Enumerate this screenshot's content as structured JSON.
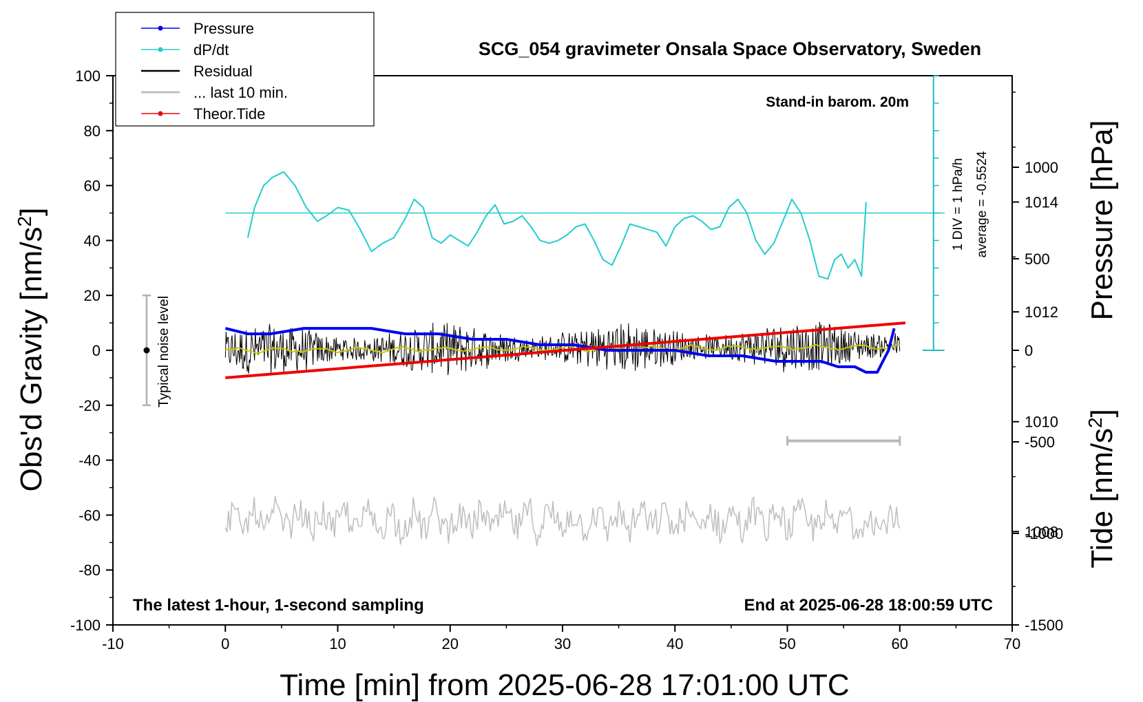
{
  "chart_data": {
    "type": "line",
    "title": "SCG_054 gravimeter Onsala Space Observatory, Sweden",
    "xlabel": "Time [min] from 2025-06-28 17:01:00 UTC",
    "ylabel_left_main": "Obs'd Gravity [nm/s",
    "ylabel_left_sup": "2",
    "ylabel_left_end": "]",
    "ylabel_right_top": "Pressure [hPa]",
    "ylabel_right_bottom_main": "Tide [nm/s",
    "ylabel_right_bottom_sup": "2",
    "ylabel_right_bottom_end": "]",
    "xlim": [
      -10,
      70
    ],
    "ylim": [
      -100,
      100
    ],
    "pressure_lim": [
      1006.3,
      1016.3
    ],
    "tide_lim": [
      -1500,
      1500
    ],
    "x_ticks": [
      "-10",
      "0",
      "10",
      "20",
      "30",
      "40",
      "50",
      "60",
      "70"
    ],
    "x_tick_values": [
      -10,
      0,
      10,
      20,
      30,
      40,
      50,
      60,
      70
    ],
    "y_ticks": [
      "100",
      "80",
      "60",
      "40",
      "20",
      "0",
      "-20",
      "-40",
      "-60",
      "-80",
      "-100"
    ],
    "y_tick_values": [
      100,
      80,
      60,
      40,
      20,
      0,
      -20,
      -40,
      -60,
      -80,
      -100
    ],
    "pressure_ticks": [
      "1014",
      "1012",
      "1010",
      "1008"
    ],
    "pressure_tick_values": [
      1014,
      1012,
      1010,
      1008
    ],
    "tide_ticks": [
      "1000",
      "500",
      "0",
      "-500",
      "-1000",
      "-1500"
    ],
    "tide_tick_values": [
      1000,
      500,
      0,
      -500,
      -1000,
      -1500
    ],
    "legend": {
      "position": "top-left",
      "entries": [
        {
          "label": "Pressure",
          "color": "#0000ee",
          "marker": true
        },
        {
          "label": "dP/dt",
          "color": "#22cccc",
          "marker": true
        },
        {
          "label": "Residual",
          "color": "#000000",
          "marker": false
        },
        {
          "label": "... last 10 min.",
          "color": "#c0c0c0",
          "marker": false
        },
        {
          "label": "Theor.Tide",
          "color": "#ee0000",
          "marker": true
        }
      ]
    },
    "annotations": {
      "stand_in": "Stand-in barom. 20m",
      "dpdt_div": "1 DIV = 1 hPa/h",
      "dpdt_avg": "average = -0.5524",
      "noise_label": "Typical noise level",
      "bottom_left": "The latest 1-hour, 1-second sampling",
      "bottom_right": "End at 2025-06-28 18:00:59 UTC"
    },
    "noise_bar": {
      "x": -7,
      "y_center": 0,
      "y_low": -20,
      "y_high": 20
    },
    "last10_bar": {
      "x_start": 50,
      "x_end": 60,
      "y": -33
    },
    "dpdt_zero_line_y": 50,
    "dpdt_scale": {
      "x": 63,
      "y_top": 100,
      "y_bottom": 0,
      "div_nm": 10
    },
    "colors": {
      "pressure": "#0000ee",
      "dpdt": "#22cccc",
      "residual": "#000000",
      "residual_smooth": "#c8c800",
      "last10": "#c0c0c0",
      "tide": "#ee0000",
      "scale": "#22bbbb"
    },
    "series": [
      {
        "name": "Pressure",
        "axis": "pressure",
        "x": [
          0,
          2,
          4,
          7,
          10,
          13,
          16,
          19,
          22,
          25,
          28,
          31,
          34,
          37,
          40,
          43,
          46,
          49,
          51,
          53,
          54.5,
          56,
          57,
          58,
          59,
          59.5
        ],
        "y": [
          1011.7,
          1011.6,
          1011.6,
          1011.7,
          1011.7,
          1011.7,
          1011.6,
          1011.6,
          1011.5,
          1011.5,
          1011.4,
          1011.4,
          1011.3,
          1011.3,
          1011.3,
          1011.2,
          1011.2,
          1011.1,
          1011.1,
          1011.1,
          1011.0,
          1011.0,
          1010.9,
          1010.9,
          1011.3,
          1011.7
        ]
      },
      {
        "name": "dP/dt",
        "axis": "gravity_units",
        "x": [
          2,
          2.6,
          3.4,
          4.2,
          5.2,
          6.2,
          7.2,
          8.2,
          9,
          10,
          11,
          12,
          13,
          14,
          15,
          16,
          16.8,
          17.6,
          18.4,
          19.2,
          20,
          20.8,
          21.6,
          22.4,
          23.2,
          24,
          24.8,
          25.6,
          26.4,
          27.2,
          28,
          28.8,
          29.6,
          30.4,
          31.2,
          32,
          32.8,
          33.6,
          34.4,
          35.2,
          36,
          36.8,
          37.6,
          38.4,
          39.2,
          40,
          40.8,
          41.6,
          42.4,
          43.2,
          44,
          44.8,
          45.6,
          46.4,
          47.2,
          48,
          48.8,
          49.6,
          50.4,
          51.2,
          52,
          52.8,
          53.6,
          54.2,
          54.8,
          55.4,
          56,
          56.6,
          57
        ],
        "y": [
          41,
          52,
          60,
          63,
          65,
          60,
          52,
          47,
          49,
          52,
          51,
          44,
          36,
          39,
          41,
          48,
          55,
          52,
          41,
          39,
          42,
          40,
          38,
          43,
          49,
          53,
          46,
          47,
          49,
          45,
          40,
          39,
          40,
          42,
          45,
          46,
          40,
          33,
          31,
          38,
          46,
          45,
          44,
          43,
          38,
          45,
          48,
          49,
          47,
          44,
          45,
          52,
          55,
          50,
          40,
          35,
          39,
          47,
          55,
          50,
          40,
          27,
          26,
          33,
          35,
          30,
          33,
          27,
          54
        ]
      },
      {
        "name": "Theor.Tide",
        "axis": "tide",
        "x": [
          0,
          60.5
        ],
        "y": [
          -150,
          150
        ]
      }
    ]
  }
}
